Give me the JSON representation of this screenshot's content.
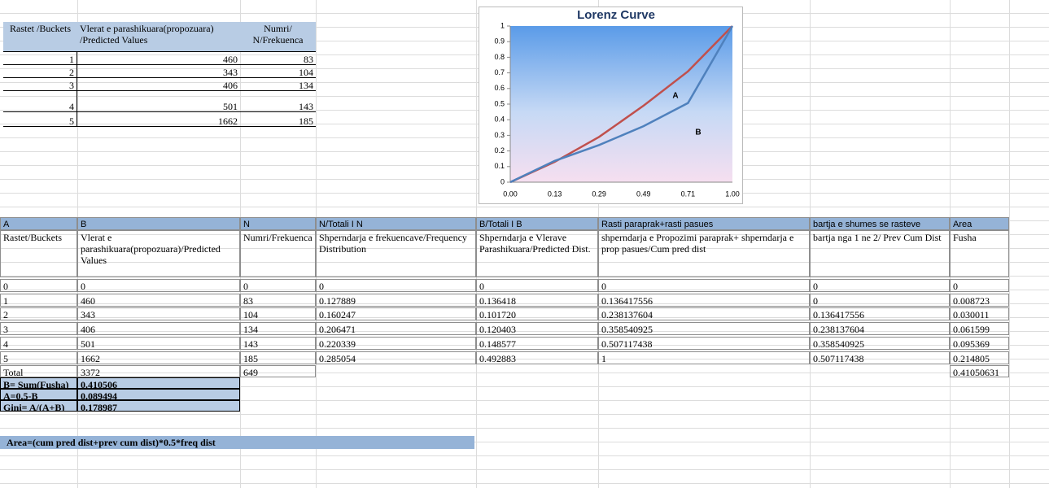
{
  "top_table": {
    "headers": [
      "Rastet /Buckets",
      "Vlerat e parashikuara(propozuara) /Predicted Values",
      "Numri/ N/Frekuenca"
    ],
    "rows": [
      [
        "1",
        "460",
        "83"
      ],
      [
        "2",
        "343",
        "104"
      ],
      [
        "3",
        "406",
        "134"
      ],
      [
        "4",
        "501",
        "143"
      ],
      [
        "5",
        "1662",
        "185"
      ]
    ]
  },
  "chart_data": {
    "type": "line",
    "title": "Lorenz Curve",
    "categories": [
      "0.00",
      "0.13",
      "0.29",
      "0.49",
      "0.71",
      "1.00"
    ],
    "series": [
      {
        "color": "#c0504d",
        "values": [
          0,
          0.13,
          0.29,
          0.49,
          0.71,
          1
        ]
      },
      {
        "color": "#4f81bd",
        "values": [
          0,
          0.136417556,
          0.238137604,
          0.358540925,
          0.507117438,
          1
        ]
      }
    ],
    "ylim": [
      0,
      1
    ],
    "yticks": [
      0,
      0.1,
      0.2,
      0.3,
      0.4,
      0.5,
      0.6,
      0.7,
      0.8,
      0.9,
      1
    ],
    "annotations": [
      "A",
      "B"
    ]
  },
  "bottom_table": {
    "column_letters": [
      "A",
      "B",
      "N",
      "N/Totali I N",
      "B/Totali I B",
      "Rasti paraprak+rasti pasues",
      "bartja e shumes se rasteve",
      "Area"
    ],
    "descriptions": [
      "Rastet/Buckets",
      "Vlerat e parashikuara(propozuara)/Predicted Values",
      "Numri/Frekuenca",
      "Shperndarja e frekuencave/Frequency Distribution",
      "Shperndarja e Vlerave Parashikuara/Predicted Dist.",
      "shperndarja e Propozimi paraprak+ shperndarja e prop pasues/Cum pred dist",
      "bartja nga 1 ne 2/ Prev Cum Dist",
      "Fusha"
    ],
    "rows": [
      [
        "0",
        "0",
        "0",
        "0",
        "0",
        "0",
        "0",
        "0"
      ],
      [
        "1",
        "460",
        "83",
        "0.127889",
        "0.136418",
        "0.136417556",
        "0",
        "0.008723"
      ],
      [
        "2",
        "343",
        "104",
        "0.160247",
        "0.101720",
        "0.238137604",
        "0.136417556",
        "0.030011"
      ],
      [
        "3",
        "406",
        "134",
        "0.206471",
        "0.120403",
        "0.358540925",
        "0.238137604",
        "0.061599"
      ],
      [
        "4",
        "501",
        "143",
        "0.220339",
        "0.148577",
        "0.507117438",
        "0.358540925",
        "0.095369"
      ],
      [
        "5",
        "1662",
        "185",
        "0.285054",
        "0.492883",
        "1",
        "0.507117438",
        "0.214805"
      ]
    ],
    "total": [
      "Total",
      "3372",
      "649"
    ],
    "total_area": "0.41050631",
    "summary": [
      {
        "label": "B= Sum(Fusha)",
        "value": "0.410506"
      },
      {
        "label": "A=0.5-B",
        "value": "0.089494"
      },
      {
        "label": "Gini= A/(A+B)",
        "value": "0.178987"
      }
    ],
    "note": "Area=(cum pred dist+prev cum dist)*0.5*freq dist"
  }
}
